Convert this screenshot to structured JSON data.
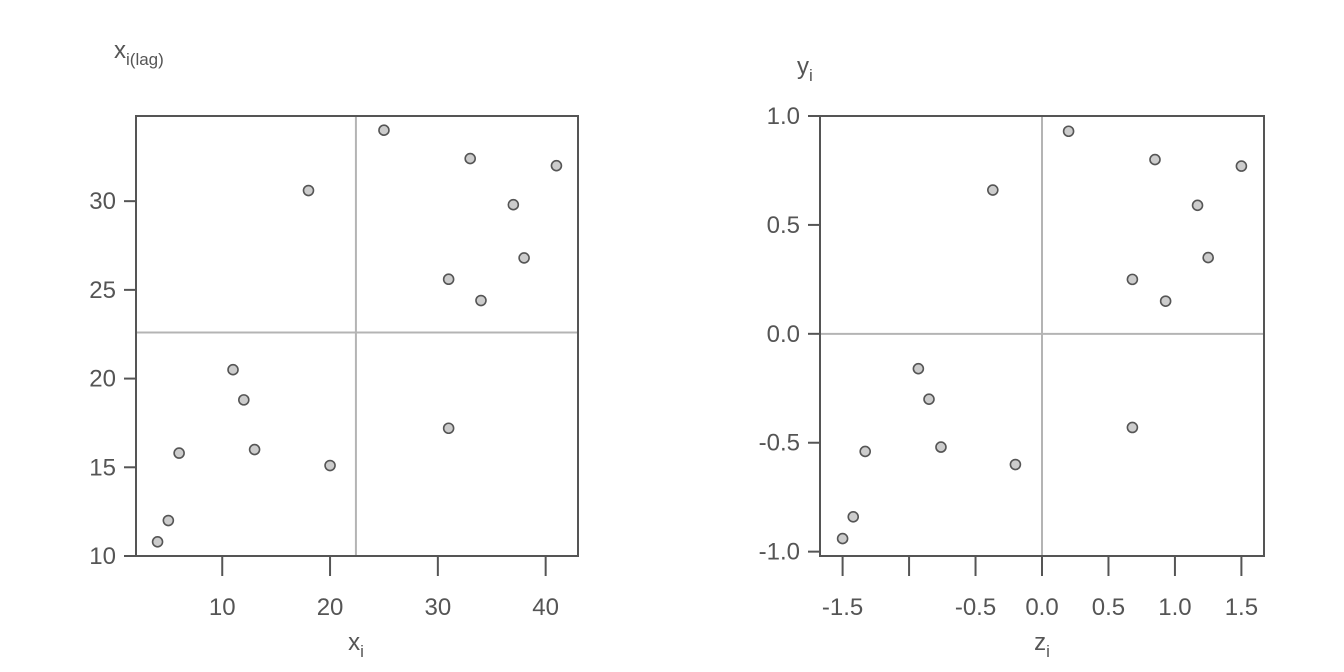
{
  "chart_data": [
    {
      "type": "scatter",
      "xlabel": {
        "main": "x",
        "sub": "i"
      },
      "ylabel": {
        "main": "x",
        "sub": "i(lag)"
      },
      "xlim": [
        2,
        43
      ],
      "ylim": [
        10,
        34.8
      ],
      "xticks": [
        10,
        20,
        30,
        40
      ],
      "yticks": [
        10,
        15,
        20,
        25,
        30
      ],
      "xtick_labels": [
        "10",
        "20",
        "30",
        "40"
      ],
      "ytick_labels": [
        "10",
        "15",
        "20",
        "25",
        "30"
      ],
      "refline_x": 22.4,
      "refline_y": 22.6,
      "grid": false,
      "x": [
        4,
        5,
        6,
        11,
        12,
        13,
        18,
        20,
        25,
        31,
        31,
        33,
        34,
        37,
        38,
        41
      ],
      "y": [
        10.8,
        12.0,
        15.8,
        20.5,
        18.8,
        16.0,
        30.6,
        15.1,
        34.0,
        17.2,
        25.6,
        32.4,
        24.4,
        29.8,
        26.8,
        32.0
      ]
    },
    {
      "type": "scatter",
      "xlabel": {
        "main": "z",
        "sub": "i"
      },
      "ylabel": {
        "main": "y",
        "sub": "i"
      },
      "xlim": [
        -1.67,
        1.67
      ],
      "ylim": [
        -1.02,
        1.0
      ],
      "xticks": [
        -1.5,
        -1.0,
        -0.5,
        0.0,
        0.5,
        1.0,
        1.5
      ],
      "yticks": [
        -1.0,
        -0.5,
        0.0,
        0.5,
        1.0
      ],
      "xtick_labels": [
        "-1.5",
        "",
        "-0.5",
        "0.0",
        "0.5",
        "1.0",
        "1.5"
      ],
      "ytick_labels": [
        "-1.0",
        "-0.5",
        "0.0",
        "0.5",
        "1.0"
      ],
      "refline_x": 0.0,
      "refline_y": 0.0,
      "grid": false,
      "x": [
        -1.5,
        -1.42,
        -1.33,
        -0.93,
        -0.85,
        -0.76,
        -0.37,
        -0.2,
        0.2,
        0.68,
        0.68,
        0.85,
        0.93,
        1.17,
        1.25,
        1.5
      ],
      "y": [
        -0.94,
        -0.84,
        -0.54,
        -0.16,
        -0.3,
        -0.52,
        0.66,
        -0.6,
        0.93,
        -0.43,
        0.25,
        0.8,
        0.15,
        0.59,
        0.35,
        0.77
      ]
    }
  ]
}
